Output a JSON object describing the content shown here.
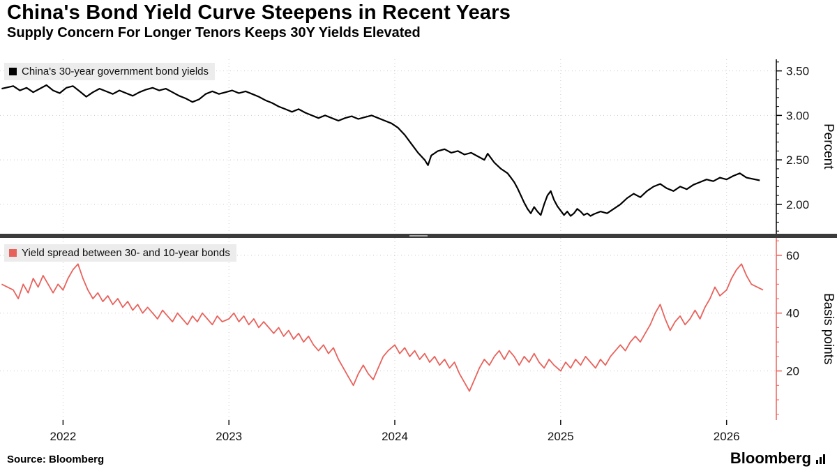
{
  "header": {
    "title": "China's Bond Yield Curve Steepens in Recent Years",
    "subtitle": "Supply Concern For Longer Tenors Keeps 30Y Yields Elevated"
  },
  "footer": {
    "source_label": "Source: Bloomberg",
    "brand": "Bloomberg"
  },
  "colors": {
    "yield_line": "#000000",
    "spread_line": "#e8625c",
    "legend_bg": "#ececec",
    "grid": "#c9c9c9",
    "divider": "#3b3b3b",
    "divider_handle": "#a8a8a8",
    "tick_text": "#111111"
  },
  "chart_data": [
    {
      "type": "line",
      "title": "China's 30-year government bond yields",
      "ylabel": "Percent",
      "color": "#000000",
      "legend_position": "top-left",
      "grid": "dotted",
      "xlim": [
        2021.62,
        2026.3
      ],
      "x_ticks": [
        2022,
        2023,
        2024,
        2025,
        2026
      ],
      "x_tick_labels": [
        "2022",
        "2023",
        "2024",
        "2025",
        "2026"
      ],
      "ylim": [
        1.67,
        3.63
      ],
      "yticks": [
        2.0,
        2.5,
        3.0,
        3.5
      ],
      "ytick_labels": [
        "2.00",
        "2.50",
        "3.00",
        "3.50"
      ],
      "minor_step": 0.1,
      "x": [
        2021.63,
        2021.7,
        2021.74,
        2021.78,
        2021.82,
        2021.86,
        2021.9,
        2021.94,
        2021.98,
        2022.02,
        2022.06,
        2022.1,
        2022.14,
        2022.18,
        2022.22,
        2022.26,
        2022.3,
        2022.34,
        2022.38,
        2022.42,
        2022.46,
        2022.5,
        2022.54,
        2022.58,
        2022.62,
        2022.66,
        2022.7,
        2022.74,
        2022.78,
        2022.82,
        2022.86,
        2022.9,
        2022.94,
        2022.98,
        2023.02,
        2023.06,
        2023.1,
        2023.14,
        2023.18,
        2023.22,
        2023.26,
        2023.3,
        2023.34,
        2023.38,
        2023.42,
        2023.46,
        2023.5,
        2023.54,
        2023.58,
        2023.62,
        2023.66,
        2023.7,
        2023.74,
        2023.78,
        2023.82,
        2023.86,
        2023.9,
        2023.94,
        2023.98,
        2024.02,
        2024.06,
        2024.1,
        2024.14,
        2024.18,
        2024.2,
        2024.22,
        2024.26,
        2024.3,
        2024.34,
        2024.38,
        2024.42,
        2024.46,
        2024.5,
        2024.54,
        2024.56,
        2024.6,
        2024.64,
        2024.68,
        2024.7,
        2024.72,
        2024.74,
        2024.76,
        2024.78,
        2024.8,
        2024.82,
        2024.84,
        2024.86,
        2024.88,
        2024.9,
        2024.92,
        2024.94,
        2024.96,
        2024.98,
        2025.0,
        2025.02,
        2025.04,
        2025.06,
        2025.08,
        2025.1,
        2025.12,
        2025.14,
        2025.16,
        2025.18,
        2025.2,
        2025.24,
        2025.28,
        2025.32,
        2025.36,
        2025.4,
        2025.44,
        2025.48,
        2025.52,
        2025.56,
        2025.6,
        2025.64,
        2025.68,
        2025.72,
        2025.76,
        2025.8,
        2025.84,
        2025.88,
        2025.92,
        2025.96,
        2026.0,
        2026.04,
        2026.08,
        2026.12,
        2026.2
      ],
      "y": [
        3.3,
        3.33,
        3.28,
        3.31,
        3.26,
        3.3,
        3.34,
        3.28,
        3.25,
        3.31,
        3.33,
        3.27,
        3.21,
        3.26,
        3.3,
        3.27,
        3.24,
        3.28,
        3.25,
        3.22,
        3.26,
        3.29,
        3.31,
        3.28,
        3.3,
        3.26,
        3.22,
        3.19,
        3.15,
        3.18,
        3.24,
        3.27,
        3.24,
        3.26,
        3.28,
        3.25,
        3.27,
        3.24,
        3.21,
        3.17,
        3.14,
        3.1,
        3.07,
        3.04,
        3.07,
        3.03,
        3.0,
        2.97,
        3.0,
        2.97,
        2.94,
        2.97,
        2.99,
        2.96,
        2.98,
        3.0,
        2.97,
        2.94,
        2.91,
        2.86,
        2.78,
        2.68,
        2.58,
        2.5,
        2.44,
        2.55,
        2.6,
        2.62,
        2.58,
        2.6,
        2.56,
        2.58,
        2.54,
        2.5,
        2.57,
        2.47,
        2.4,
        2.35,
        2.3,
        2.25,
        2.18,
        2.1,
        2.02,
        1.95,
        1.9,
        1.97,
        1.92,
        1.88,
        2.0,
        2.1,
        2.15,
        2.05,
        1.98,
        1.93,
        1.88,
        1.92,
        1.87,
        1.9,
        1.95,
        1.92,
        1.88,
        1.9,
        1.87,
        1.89,
        1.92,
        1.9,
        1.95,
        2.0,
        2.07,
        2.12,
        2.08,
        2.15,
        2.2,
        2.23,
        2.18,
        2.15,
        2.2,
        2.17,
        2.22,
        2.25,
        2.28,
        2.26,
        2.3,
        2.28,
        2.32,
        2.35,
        2.3,
        2.27
      ]
    },
    {
      "type": "line",
      "title": "Yield spread between 30- and 10-year bonds",
      "ylabel": "Basis points",
      "color": "#e8625c",
      "legend_position": "top-left",
      "grid": "dotted",
      "xlim": [
        2021.62,
        2026.3
      ],
      "x_ticks": [
        2022,
        2023,
        2024,
        2025,
        2026
      ],
      "x_tick_labels": [
        "2022",
        "2023",
        "2024",
        "2025",
        "2026"
      ],
      "ylim": [
        3,
        66
      ],
      "yticks": [
        20,
        40,
        60
      ],
      "ytick_labels": [
        "20",
        "40",
        "60"
      ],
      "minor_step": 5,
      "x": [
        2021.63,
        2021.7,
        2021.73,
        2021.76,
        2021.79,
        2021.82,
        2021.85,
        2021.88,
        2021.91,
        2021.94,
        2021.97,
        2022.0,
        2022.03,
        2022.06,
        2022.09,
        2022.12,
        2022.15,
        2022.18,
        2022.21,
        2022.24,
        2022.27,
        2022.3,
        2022.33,
        2022.36,
        2022.39,
        2022.42,
        2022.45,
        2022.48,
        2022.51,
        2022.54,
        2022.57,
        2022.6,
        2022.63,
        2022.66,
        2022.69,
        2022.72,
        2022.75,
        2022.78,
        2022.81,
        2022.84,
        2022.87,
        2022.9,
        2022.93,
        2022.96,
        2023.0,
        2023.03,
        2023.06,
        2023.09,
        2023.12,
        2023.15,
        2023.18,
        2023.21,
        2023.24,
        2023.27,
        2023.3,
        2023.33,
        2023.36,
        2023.39,
        2023.42,
        2023.45,
        2023.48,
        2023.51,
        2023.54,
        2023.57,
        2023.6,
        2023.63,
        2023.66,
        2023.69,
        2023.72,
        2023.75,
        2023.78,
        2023.81,
        2023.84,
        2023.87,
        2023.9,
        2023.93,
        2023.96,
        2024.0,
        2024.03,
        2024.06,
        2024.09,
        2024.12,
        2024.15,
        2024.18,
        2024.21,
        2024.24,
        2024.27,
        2024.3,
        2024.33,
        2024.36,
        2024.39,
        2024.42,
        2024.45,
        2024.48,
        2024.51,
        2024.54,
        2024.57,
        2024.6,
        2024.63,
        2024.66,
        2024.69,
        2024.72,
        2024.75,
        2024.78,
        2024.81,
        2024.84,
        2024.87,
        2024.9,
        2024.93,
        2024.96,
        2025.0,
        2025.03,
        2025.06,
        2025.09,
        2025.12,
        2025.15,
        2025.18,
        2025.21,
        2025.24,
        2025.27,
        2025.3,
        2025.33,
        2025.36,
        2025.39,
        2025.42,
        2025.45,
        2025.48,
        2025.51,
        2025.54,
        2025.57,
        2025.6,
        2025.63,
        2025.66,
        2025.69,
        2025.72,
        2025.75,
        2025.78,
        2025.81,
        2025.84,
        2025.87,
        2025.9,
        2025.93,
        2025.96,
        2026.0,
        2026.03,
        2026.06,
        2026.09,
        2026.12,
        2026.15,
        2026.22
      ],
      "y": [
        50,
        48,
        45,
        50,
        47,
        52,
        49,
        53,
        50,
        47,
        50,
        48,
        52,
        55,
        57,
        52,
        48,
        45,
        47,
        44,
        46,
        43,
        45,
        42,
        44,
        41,
        43,
        40,
        42,
        40,
        38,
        41,
        39,
        37,
        40,
        38,
        36,
        39,
        37,
        40,
        38,
        36,
        39,
        37,
        38,
        40,
        37,
        39,
        36,
        38,
        35,
        37,
        35,
        33,
        35,
        32,
        34,
        31,
        33,
        30,
        32,
        29,
        27,
        29,
        26,
        28,
        24,
        21,
        18,
        15,
        19,
        22,
        19,
        17,
        21,
        25,
        27,
        29,
        26,
        28,
        25,
        27,
        24,
        26,
        23,
        25,
        22,
        24,
        21,
        23,
        19,
        16,
        13,
        17,
        21,
        24,
        22,
        25,
        27,
        24,
        27,
        25,
        22,
        25,
        23,
        26,
        23,
        21,
        24,
        22,
        20,
        23,
        21,
        24,
        22,
        25,
        23,
        21,
        24,
        22,
        25,
        27,
        29,
        27,
        30,
        32,
        30,
        33,
        36,
        40,
        43,
        38,
        34,
        37,
        39,
        36,
        38,
        41,
        38,
        42,
        45,
        49,
        46,
        48,
        52,
        55,
        57,
        53,
        50,
        48
      ]
    }
  ]
}
